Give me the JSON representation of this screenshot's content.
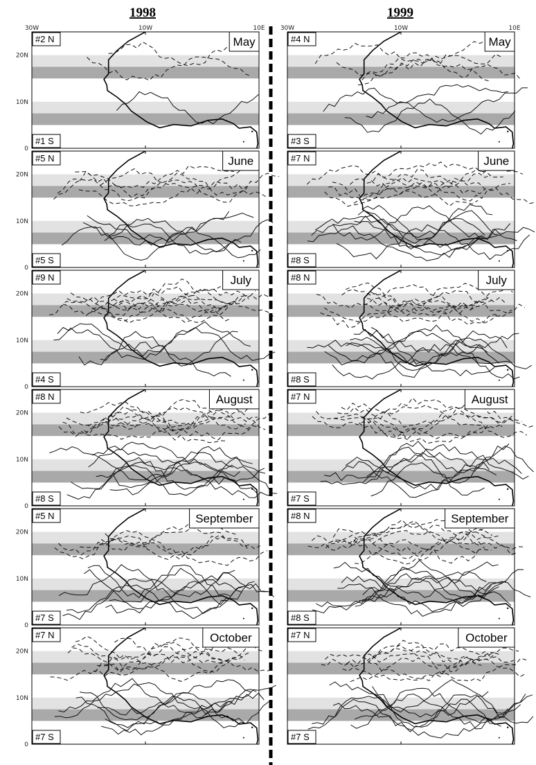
{
  "years": [
    "1998",
    "1999"
  ],
  "lon_ticks": [
    "30W",
    "10W",
    "10E"
  ],
  "lat_ticks": [
    "20N",
    "10N",
    "0"
  ],
  "colors": {
    "band_light": "#e2e2e2",
    "band_dark": "#a9a9a9",
    "north_tracks": "dashed",
    "south_tracks": "solid"
  },
  "chart_data": {
    "type": "line",
    "x_axis": {
      "range": [
        -30,
        10
      ],
      "ticks": [
        "30W",
        "10W",
        "10E"
      ]
    },
    "y_axis": {
      "range": [
        0,
        25
      ],
      "ticks": [
        "20N",
        "10N",
        "0"
      ]
    },
    "bands": {
      "north": {
        "light": [
          15,
          20
        ],
        "dark": [
          15,
          17.5
        ]
      },
      "south": {
        "light": [
          5,
          10
        ],
        "dark": [
          5,
          7.5
        ]
      }
    },
    "panels": [
      {
        "year": "1998",
        "month": "May",
        "north_label": "#2 N",
        "south_label": "#1 S",
        "north_count": 2,
        "south_count": 1
      },
      {
        "year": "1999",
        "month": "May",
        "north_label": "#4 N",
        "south_label": "#3 S",
        "north_count": 4,
        "south_count": 3
      },
      {
        "year": "1998",
        "month": "June",
        "north_label": "#5 N",
        "south_label": "#5 S",
        "north_count": 5,
        "south_count": 5
      },
      {
        "year": "1999",
        "month": "June",
        "north_label": "#7 N",
        "south_label": "#8 S",
        "north_count": 7,
        "south_count": 8
      },
      {
        "year": "1998",
        "month": "July",
        "north_label": "#9 N",
        "south_label": "#4 S",
        "north_count": 9,
        "south_count": 4
      },
      {
        "year": "1999",
        "month": "July",
        "north_label": "#8 N",
        "south_label": "#8 S",
        "north_count": 8,
        "south_count": 8
      },
      {
        "year": "1998",
        "month": "August",
        "north_label": "#8 N",
        "south_label": "#8 S",
        "north_count": 8,
        "south_count": 8
      },
      {
        "year": "1999",
        "month": "August",
        "north_label": "#7 N",
        "south_label": "#7 S",
        "north_count": 7,
        "south_count": 7
      },
      {
        "year": "1998",
        "month": "September",
        "north_label": "#5 N",
        "south_label": "#7 S",
        "north_count": 5,
        "south_count": 7
      },
      {
        "year": "1999",
        "month": "September",
        "north_label": "#8 N",
        "south_label": "#8 S",
        "north_count": 8,
        "south_count": 8
      },
      {
        "year": "1998",
        "month": "October",
        "north_label": "#7 N",
        "south_label": "#7 S",
        "north_count": 7,
        "south_count": 7
      },
      {
        "year": "1999",
        "month": "October",
        "north_label": "#7 N",
        "south_label": "#7 S",
        "north_count": 7,
        "south_count": 7
      }
    ]
  }
}
